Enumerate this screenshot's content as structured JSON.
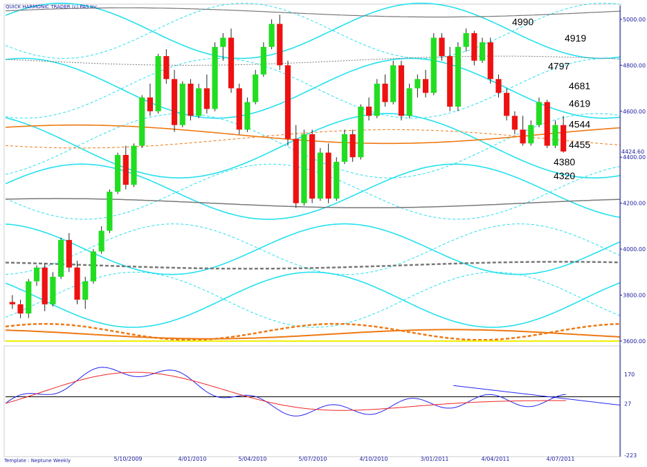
{
  "header": {
    "title": "QUICK HARMONIC TRADER (c) PAS Inc."
  },
  "footer": {
    "template": "Template : Neptune Weekly"
  },
  "colors": {
    "bull": "#22dd22",
    "bear": "#ee1111",
    "cyan": "#22e0ee",
    "orange": "#ee7711",
    "gray": "#777777",
    "ma_blue": "#2222ee",
    "ma_red": "#ee2222",
    "axis": "#1a1aa0",
    "baseline": "#eeee00"
  },
  "chart_data": [
    {
      "type": "candlestick",
      "title": "",
      "y_ticks": [
        3600,
        3800,
        4000,
        4200,
        4400,
        4600,
        4800,
        5000
      ],
      "ylim": [
        3600,
        5060
      ],
      "current_price_label": "4424.60",
      "current_price": 4424.6,
      "x_labels": [
        "5/10/2009",
        "4/01/2010",
        "5/04/2010",
        "5/07/2010",
        "4/10/2010",
        "3/01/2011",
        "4/04/2011",
        "4/07/2011"
      ],
      "x_label_index": [
        16,
        28,
        38,
        48,
        58,
        68,
        78,
        88
      ],
      "x_count": 95,
      "levels": [
        "4990",
        "4919",
        "4797",
        "4681",
        "4619",
        "4544",
        "4455",
        "4380",
        "4320"
      ],
      "level_values": [
        4990,
        4919,
        4797,
        4681,
        4619,
        4544,
        4455,
        4380,
        4320
      ],
      "candles": [
        [
          3770,
          3800,
          3740,
          3760
        ],
        [
          3760,
          3780,
          3700,
          3720
        ],
        [
          3720,
          3870,
          3700,
          3860
        ],
        [
          3860,
          3930,
          3840,
          3920
        ],
        [
          3920,
          3940,
          3730,
          3760
        ],
        [
          3760,
          3900,
          3750,
          3880
        ],
        [
          3880,
          4050,
          3870,
          4040
        ],
        [
          4040,
          4070,
          3900,
          3920
        ],
        [
          3920,
          3950,
          3760,
          3780
        ],
        [
          3780,
          3880,
          3740,
          3860
        ],
        [
          3860,
          4000,
          3850,
          3990
        ],
        [
          3990,
          4100,
          3980,
          4080
        ],
        [
          4080,
          4260,
          4070,
          4250
        ],
        [
          4250,
          4420,
          4240,
          4410
        ],
        [
          4410,
          4450,
          4260,
          4280
        ],
        [
          4280,
          4460,
          4270,
          4450
        ],
        [
          4450,
          4670,
          4440,
          4660
        ],
        [
          4660,
          4720,
          4580,
          4600
        ],
        [
          4600,
          4850,
          4590,
          4840
        ],
        [
          4840,
          4870,
          4720,
          4740
        ],
        [
          4740,
          4780,
          4510,
          4540
        ],
        [
          4540,
          4730,
          4530,
          4720
        ],
        [
          4720,
          4740,
          4560,
          4580
        ],
        [
          4580,
          4720,
          4570,
          4700
        ],
        [
          4700,
          4760,
          4590,
          4610
        ],
        [
          4610,
          4900,
          4600,
          4880
        ],
        [
          4880,
          4940,
          4820,
          4920
        ],
        [
          4920,
          4960,
          4680,
          4700
        ],
        [
          4700,
          4720,
          4500,
          4520
        ],
        [
          4520,
          4660,
          4510,
          4640
        ],
        [
          4640,
          4780,
          4630,
          4760
        ],
        [
          4760,
          4900,
          4750,
          4880
        ],
        [
          4880,
          5000,
          4870,
          4980
        ],
        [
          4980,
          5020,
          4780,
          4800
        ],
        [
          4800,
          4820,
          4450,
          4480
        ],
        [
          4480,
          4540,
          4180,
          4200
        ],
        [
          4200,
          4520,
          4190,
          4500
        ],
        [
          4500,
          4520,
          4200,
          4220
        ],
        [
          4220,
          4440,
          4210,
          4420
        ],
        [
          4420,
          4460,
          4200,
          4220
        ],
        [
          4220,
          4400,
          4210,
          4380
        ],
        [
          4380,
          4520,
          4370,
          4500
        ],
        [
          4500,
          4520,
          4380,
          4400
        ],
        [
          4400,
          4630,
          4390,
          4620
        ],
        [
          4620,
          4660,
          4560,
          4580
        ],
        [
          4580,
          4740,
          4570,
          4720
        ],
        [
          4720,
          4760,
          4620,
          4640
        ],
        [
          4640,
          4820,
          4630,
          4800
        ],
        [
          4800,
          4820,
          4560,
          4580
        ],
        [
          4580,
          4720,
          4570,
          4700
        ],
        [
          4700,
          4760,
          4660,
          4740
        ],
        [
          4740,
          4780,
          4660,
          4680
        ],
        [
          4680,
          4940,
          4670,
          4920
        ],
        [
          4920,
          4940,
          4820,
          4840
        ],
        [
          4840,
          4880,
          4600,
          4620
        ],
        [
          4620,
          4900,
          4600,
          4880
        ],
        [
          4880,
          4960,
          4860,
          4940
        ],
        [
          4940,
          4950,
          4800,
          4820
        ],
        [
          4820,
          4920,
          4810,
          4900
        ],
        [
          4900,
          4920,
          4720,
          4740
        ],
        [
          4740,
          4760,
          4660,
          4680
        ],
        [
          4680,
          4700,
          4560,
          4580
        ],
        [
          4580,
          4600,
          4500,
          4520
        ],
        [
          4520,
          4580,
          4450,
          4460
        ],
        [
          4460,
          4560,
          4450,
          4540
        ],
        [
          4540,
          4660,
          4530,
          4640
        ],
        [
          4640,
          4650,
          4440,
          4450
        ],
        [
          4450,
          4560,
          4440,
          4540
        ],
        [
          4540,
          4580,
          4420,
          4425
        ]
      ]
    },
    {
      "type": "line",
      "title": "",
      "y_ticks": [
        170,
        27,
        -223
      ],
      "ylim": [
        -223,
        290
      ]
    }
  ]
}
